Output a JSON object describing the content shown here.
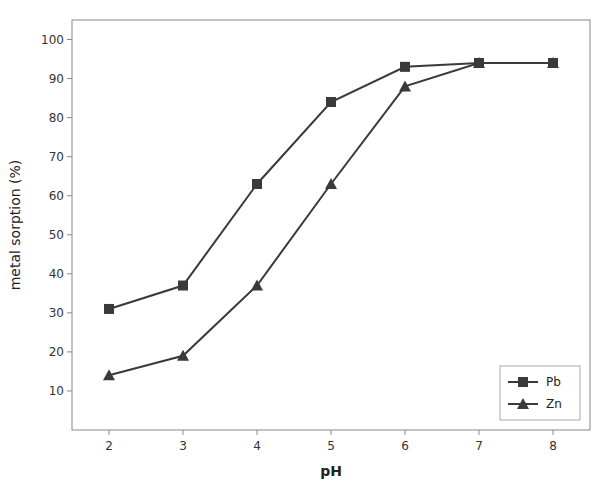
{
  "chart_data": {
    "type": "line",
    "x": [
      2,
      3,
      4,
      5,
      6,
      7,
      8
    ],
    "series": [
      {
        "name": "Pb",
        "color": "#3a3a3a",
        "marker": "square",
        "values": [
          31,
          37,
          63,
          84,
          93,
          94,
          94
        ]
      },
      {
        "name": "Zn",
        "color": "#3a3a3a",
        "marker": "triangle",
        "values": [
          14,
          19,
          37,
          63,
          88,
          94,
          94
        ]
      }
    ],
    "xlabel": "pH",
    "ylabel": "metal sorption (%)",
    "xlim": [
      1.5,
      8.5
    ],
    "ylim": [
      0,
      105
    ],
    "xticks": [
      2,
      3,
      4,
      5,
      6,
      7,
      8
    ],
    "yticks": [
      10,
      20,
      30,
      40,
      50,
      60,
      70,
      80,
      90,
      100
    ],
    "grid": false,
    "legend": "lower right"
  }
}
